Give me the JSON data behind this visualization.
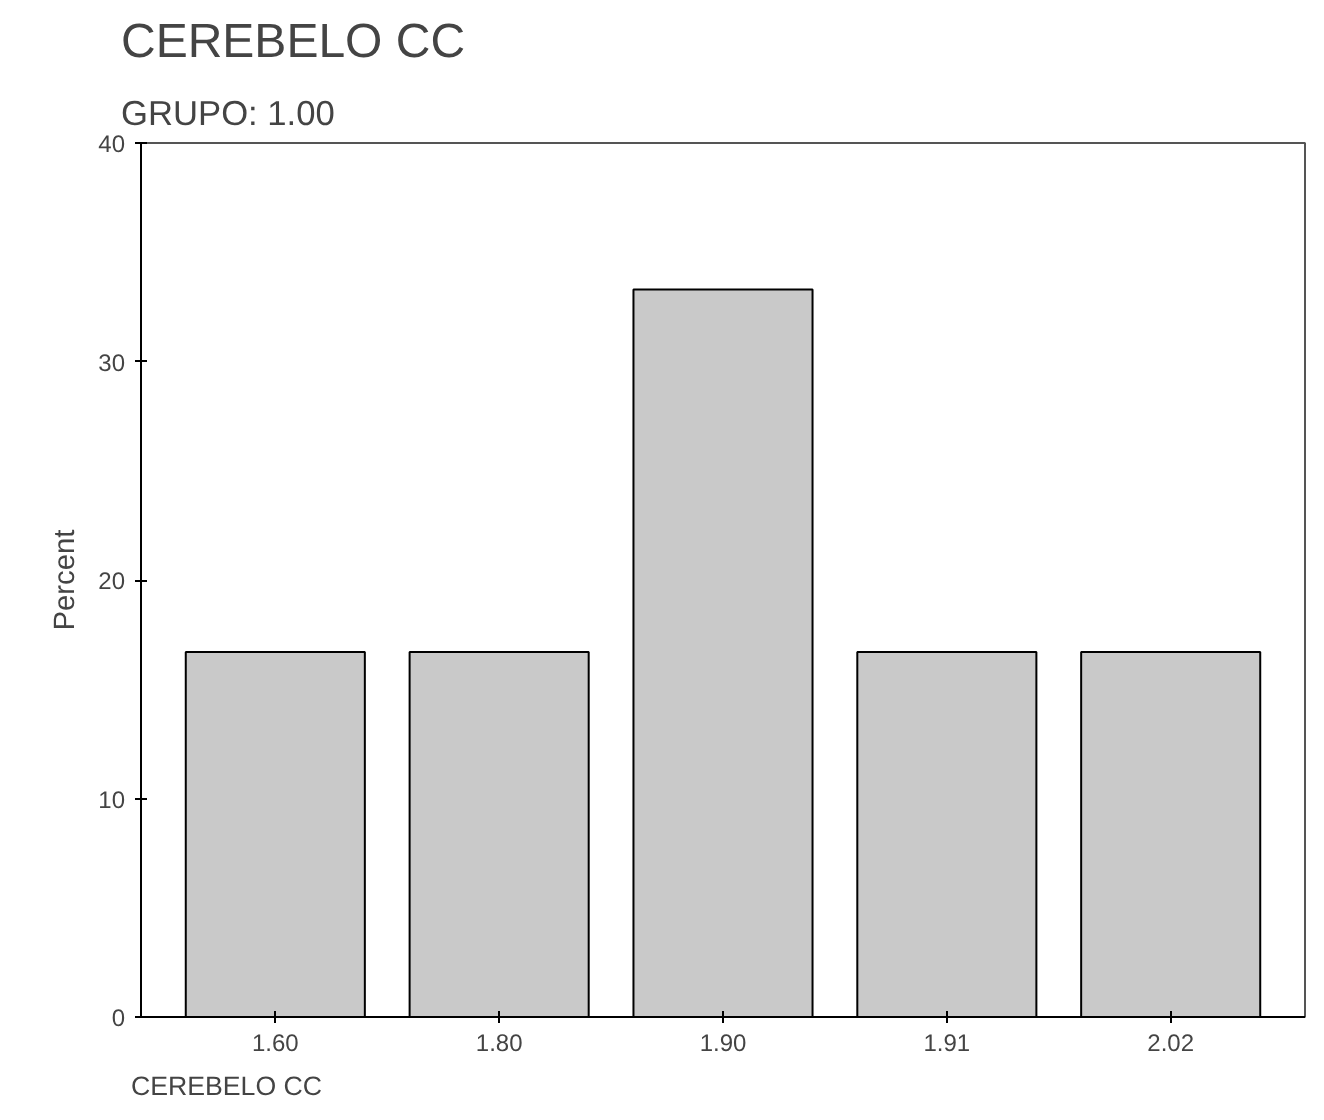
{
  "chart_data": {
    "type": "bar",
    "title": "CEREBELO CC",
    "subtitle": "GRUPO: 1.00",
    "xlabel": "CEREBELO CC",
    "ylabel": "Percent",
    "categories": [
      "1.60",
      "1.80",
      "1.90",
      "1.91",
      "2.02"
    ],
    "values": [
      16.7,
      16.7,
      33.3,
      16.7,
      16.7
    ],
    "color": "#c9c9c9",
    "ylim": [
      0,
      40
    ],
    "yticks": [
      0,
      10,
      20,
      30,
      40
    ],
    "grid": false
  }
}
